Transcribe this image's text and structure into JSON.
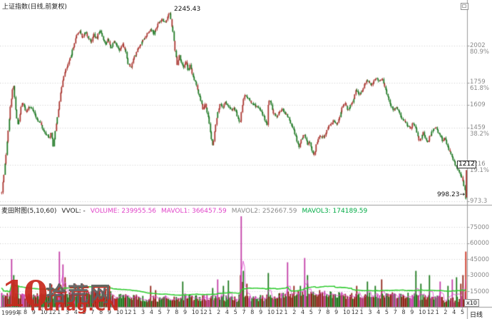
{
  "chart_data": {
    "type": "candlestick+volume",
    "title": "上证指数(日线,前复权)",
    "annotations": {
      "peak_label": "2245.43",
      "low_label": "998.23",
      "low_arrow": "→",
      "last_price_tag": "1212"
    },
    "fib_levels": [
      {
        "label": "2002",
        "price": 2002,
        "pct": "80.9%"
      },
      {
        "label": "1759",
        "price": 1759,
        "pct": "61.8%"
      },
      {
        "label": "1609",
        "price": 1609,
        "pct": ""
      },
      {
        "label": "1459",
        "price": 1459,
        "pct": "38.2%"
      },
      {
        "label": "1216",
        "price": 1216,
        "pct": "19.1%"
      },
      {
        "label": "973.3",
        "price": 973.3,
        "pct": ""
      }
    ],
    "price_axis": {
      "high_anchor": 2245.43,
      "low_anchor": 973.3
    },
    "price_path": [
      [
        2,
        1030
      ],
      [
        4,
        1120
      ],
      [
        6,
        1190
      ],
      [
        9,
        1337
      ],
      [
        12,
        1500
      ],
      [
        15,
        1640
      ],
      [
        18,
        1752
      ],
      [
        20,
        1660
      ],
      [
        22,
        1549
      ],
      [
        25,
        1469
      ],
      [
        28,
        1573
      ],
      [
        31,
        1629
      ],
      [
        34,
        1587
      ],
      [
        37,
        1559
      ],
      [
        40,
        1610
      ],
      [
        44,
        1587
      ],
      [
        48,
        1549
      ],
      [
        52,
        1511
      ],
      [
        56,
        1492
      ],
      [
        60,
        1445
      ],
      [
        64,
        1417
      ],
      [
        68,
        1389
      ],
      [
        71,
        1422
      ],
      [
        74,
        1342
      ],
      [
        76,
        1393
      ],
      [
        79,
        1502
      ],
      [
        82,
        1606
      ],
      [
        85,
        1700
      ],
      [
        88,
        1795
      ],
      [
        91,
        1832
      ],
      [
        95,
        1879
      ],
      [
        99,
        1926
      ],
      [
        103,
        2011
      ],
      [
        107,
        2068
      ],
      [
        111,
        2106
      ],
      [
        115,
        2044
      ],
      [
        119,
        2092
      ],
      [
        123,
        2059
      ],
      [
        127,
        2021
      ],
      [
        131,
        2078
      ],
      [
        135,
        2044
      ],
      [
        139,
        2106
      ],
      [
        143,
        2068
      ],
      [
        147,
        2011
      ],
      [
        151,
        2044
      ],
      [
        155,
        1983
      ],
      [
        159,
        2030
      ],
      [
        163,
        1997
      ],
      [
        167,
        1964
      ],
      [
        171,
        2011
      ],
      [
        175,
        1974
      ],
      [
        179,
        1889
      ],
      [
        183,
        1856
      ],
      [
        187,
        1917
      ],
      [
        191,
        1964
      ],
      [
        195,
        1997
      ],
      [
        199,
        2030
      ],
      [
        203,
        2059
      ],
      [
        207,
        2092
      ],
      [
        211,
        2115
      ],
      [
        215,
        2082
      ],
      [
        219,
        2125
      ],
      [
        223,
        2162
      ],
      [
        227,
        2181
      ],
      [
        231,
        2153
      ],
      [
        234,
        2190
      ],
      [
        237,
        2224
      ],
      [
        239,
        2172
      ],
      [
        242,
        2092
      ],
      [
        245,
        1974
      ],
      [
        248,
        1879
      ],
      [
        251,
        1936
      ],
      [
        254,
        1889
      ],
      [
        257,
        1856
      ],
      [
        260,
        1898
      ],
      [
        263,
        1842
      ],
      [
        266,
        1870
      ],
      [
        269,
        1809
      ],
      [
        272,
        1776
      ],
      [
        275,
        1738
      ],
      [
        278,
        1691
      ],
      [
        281,
        1643
      ],
      [
        284,
        1587
      ],
      [
        287,
        1620
      ],
      [
        290,
        1559
      ],
      [
        293,
        1492
      ],
      [
        296,
        1384
      ],
      [
        298,
        1327
      ],
      [
        301,
        1450
      ],
      [
        304,
        1540
      ],
      [
        308,
        1620
      ],
      [
        312,
        1596
      ],
      [
        316,
        1634
      ],
      [
        320,
        1596
      ],
      [
        324,
        1573
      ],
      [
        328,
        1596
      ],
      [
        332,
        1540
      ],
      [
        336,
        1492
      ],
      [
        339,
        1600
      ],
      [
        343,
        1691
      ],
      [
        347,
        1650
      ],
      [
        351,
        1630
      ],
      [
        355,
        1615
      ],
      [
        359,
        1600
      ],
      [
        363,
        1582
      ],
      [
        367,
        1559
      ],
      [
        371,
        1511
      ],
      [
        374,
        1473
      ],
      [
        376,
        1653
      ],
      [
        379,
        1620
      ],
      [
        383,
        1559
      ],
      [
        387,
        1535
      ],
      [
        391,
        1560
      ],
      [
        395,
        1587
      ],
      [
        399,
        1550
      ],
      [
        403,
        1535
      ],
      [
        407,
        1492
      ],
      [
        411,
        1455
      ],
      [
        415,
        1390
      ],
      [
        419,
        1332
      ],
      [
        422,
        1379
      ],
      [
        425,
        1417
      ],
      [
        428,
        1398
      ],
      [
        431,
        1351
      ],
      [
        434,
        1370
      ],
      [
        437,
        1304
      ],
      [
        440,
        1276
      ],
      [
        443,
        1346
      ],
      [
        447,
        1400
      ],
      [
        451,
        1393
      ],
      [
        455,
        1407
      ],
      [
        459,
        1455
      ],
      [
        463,
        1483
      ],
      [
        467,
        1502
      ],
      [
        471,
        1483
      ],
      [
        475,
        1520
      ],
      [
        479,
        1587
      ],
      [
        483,
        1629
      ],
      [
        487,
        1570
      ],
      [
        491,
        1606
      ],
      [
        495,
        1643
      ],
      [
        499,
        1709
      ],
      [
        503,
        1676
      ],
      [
        507,
        1705
      ],
      [
        511,
        1750
      ],
      [
        515,
        1776
      ],
      [
        519,
        1738
      ],
      [
        523,
        1765
      ],
      [
        527,
        1790
      ],
      [
        531,
        1771
      ],
      [
        535,
        1785
      ],
      [
        539,
        1738
      ],
      [
        543,
        1670
      ],
      [
        547,
        1615
      ],
      [
        551,
        1573
      ],
      [
        555,
        1596
      ],
      [
        559,
        1559
      ],
      [
        563,
        1520
      ],
      [
        567,
        1500
      ],
      [
        571,
        1470
      ],
      [
        575,
        1455
      ],
      [
        579,
        1490
      ],
      [
        583,
        1445
      ],
      [
        587,
        1370
      ],
      [
        590,
        1393
      ],
      [
        593,
        1426
      ],
      [
        596,
        1384
      ],
      [
        599,
        1360
      ],
      [
        602,
        1398
      ],
      [
        605,
        1431
      ],
      [
        608,
        1455
      ],
      [
        611,
        1469
      ],
      [
        614,
        1422
      ],
      [
        617,
        1407
      ],
      [
        620,
        1374
      ],
      [
        623,
        1393
      ],
      [
        626,
        1351
      ],
      [
        629,
        1313
      ],
      [
        633,
        1265
      ],
      [
        637,
        1225
      ],
      [
        641,
        1186
      ],
      [
        645,
        1150
      ],
      [
        649,
        1100
      ],
      [
        652,
        1030
      ],
      [
        653,
        998
      ]
    ],
    "last_bar": {
      "low": 998.23,
      "close": 1180
    },
    "volume": {
      "ticks": [
        "75000",
        "60000",
        "45000",
        "30000",
        "15000"
      ],
      "tick_values": [
        75000,
        60000,
        45000,
        30000,
        15000
      ],
      "multiplier": "x10",
      "base_range": [
        3000,
        16000
      ],
      "spikes": [
        [
          15,
          45000
        ],
        [
          18,
          30000
        ],
        [
          25,
          20000
        ],
        [
          83,
          52000
        ],
        [
          87,
          40000
        ],
        [
          90,
          28000
        ],
        [
          210,
          20000
        ],
        [
          218,
          16000
        ],
        [
          255,
          24000
        ],
        [
          298,
          18000
        ],
        [
          305,
          26000
        ],
        [
          312,
          20000
        ],
        [
          320,
          25000
        ],
        [
          336,
          30000
        ],
        [
          338,
          85000
        ],
        [
          341,
          34000
        ],
        [
          345,
          22000
        ],
        [
          375,
          32000
        ],
        [
          403,
          42000
        ],
        [
          412,
          20000
        ],
        [
          420,
          20000
        ],
        [
          427,
          46000
        ],
        [
          431,
          30000
        ],
        [
          447,
          16000
        ],
        [
          500,
          20000
        ],
        [
          515,
          24000
        ],
        [
          525,
          20000
        ],
        [
          535,
          26000
        ],
        [
          583,
          34000
        ],
        [
          590,
          22000
        ],
        [
          602,
          30000
        ],
        [
          617,
          24000
        ],
        [
          628,
          20000
        ],
        [
          634,
          26000
        ],
        [
          640,
          28000
        ],
        [
          645,
          22000
        ],
        [
          648,
          30000
        ],
        [
          653,
          52000
        ]
      ]
    },
    "x_axis": {
      "first_label": "1999年",
      "labels": [
        "8",
        "9",
        "10",
        "12",
        "1",
        "3",
        "4",
        "5",
        "7",
        "8",
        "9",
        "10",
        "12",
        "1",
        "3",
        "4",
        "5",
        "7",
        "8",
        "9",
        "10",
        "12",
        "1",
        "2",
        "4",
        "5",
        "7",
        "8",
        "9",
        "10",
        "12",
        "1",
        "2",
        "4",
        "5",
        "7",
        "8",
        "9",
        "10",
        "12",
        "1",
        "3",
        "4",
        "5",
        "7",
        "8",
        "9",
        "10",
        "12",
        "1",
        "2",
        "4",
        "5"
      ],
      "period_label": "日线"
    }
  },
  "volume_header": {
    "indicator": "麦田附图(5,10,60)",
    "aux": "VVOL: -",
    "fields": [
      {
        "label": "VOLUME:",
        "value": "239955.56",
        "color": "#e044c8"
      },
      {
        "label": "MAVOL1:",
        "value": "366457.59",
        "color": "#e044c8"
      },
      {
        "label": "MAVOL2:",
        "value": "252667.59",
        "color": "#8a8a8a"
      },
      {
        "label": "MAVOL3:",
        "value": "174189.59",
        "color": "#00aa44"
      }
    ]
  },
  "watermark": {
    "big": "10",
    "site": "拾荒网",
    "domain": "Hunag.CN"
  },
  "icons": {
    "window_button": "restore-window-icon",
    "low_arrow_icon": "right-arrow-icon"
  },
  "colors": {
    "candle_up": "#ab3832",
    "candle_down": "#217a26",
    "vol_red": "#8f2318",
    "vol_green": "#1f7a1f",
    "vol_magenta": "#c43fa8",
    "mavol1": "#dd44cc",
    "mavol3": "#33cc33",
    "grid": "#cccccc",
    "axis": "#9a9a9a",
    "label_gray": "#8a8a8a",
    "magenta_text": "#e044c8",
    "green_text": "#00aa44"
  }
}
